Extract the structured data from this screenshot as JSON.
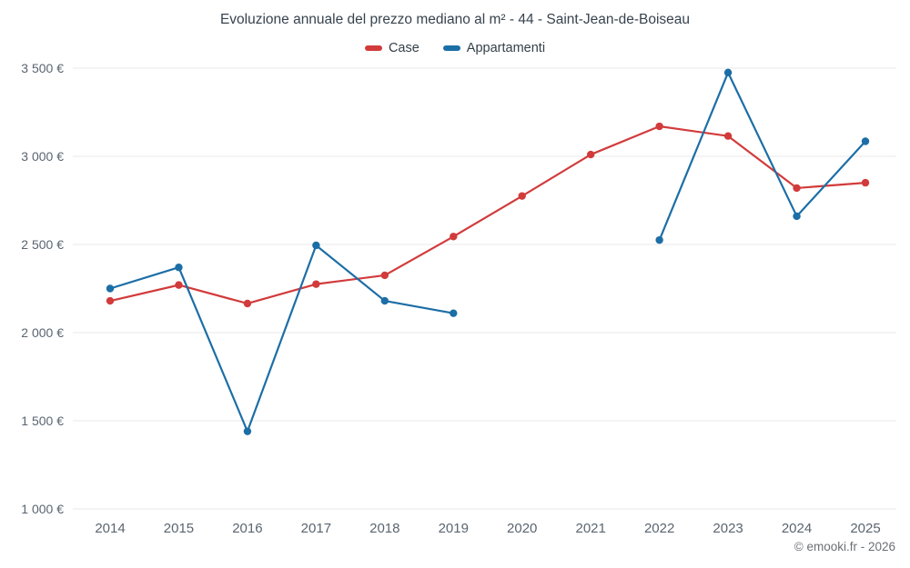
{
  "chart_data": {
    "type": "line",
    "title": "Evoluzione annuale del prezzo mediano al m² - 44 - Saint-Jean-de-Boiseau",
    "categories": [
      "2014",
      "2015",
      "2016",
      "2017",
      "2018",
      "2019",
      "2020",
      "2021",
      "2022",
      "2023",
      "2024",
      "2025"
    ],
    "series": [
      {
        "name": "Case",
        "color": "#d23b3b",
        "values": [
          2180,
          2270,
          2165,
          2275,
          2325,
          2545,
          2775,
          3010,
          3170,
          3115,
          2820,
          2850
        ]
      },
      {
        "name": "Appartamenti",
        "color": "#1c6ea6",
        "values": [
          2250,
          2370,
          1440,
          2495,
          2180,
          2110,
          null,
          null,
          2525,
          3475,
          2660,
          3085
        ]
      }
    ],
    "y_axis": {
      "min": 1000,
      "max": 3500,
      "step": 500,
      "suffix": " €",
      "grid": true
    },
    "x_axis": {
      "label": ""
    },
    "legend_position": "top"
  },
  "footer": {
    "copyright": "© emooki.fr - 2026"
  }
}
